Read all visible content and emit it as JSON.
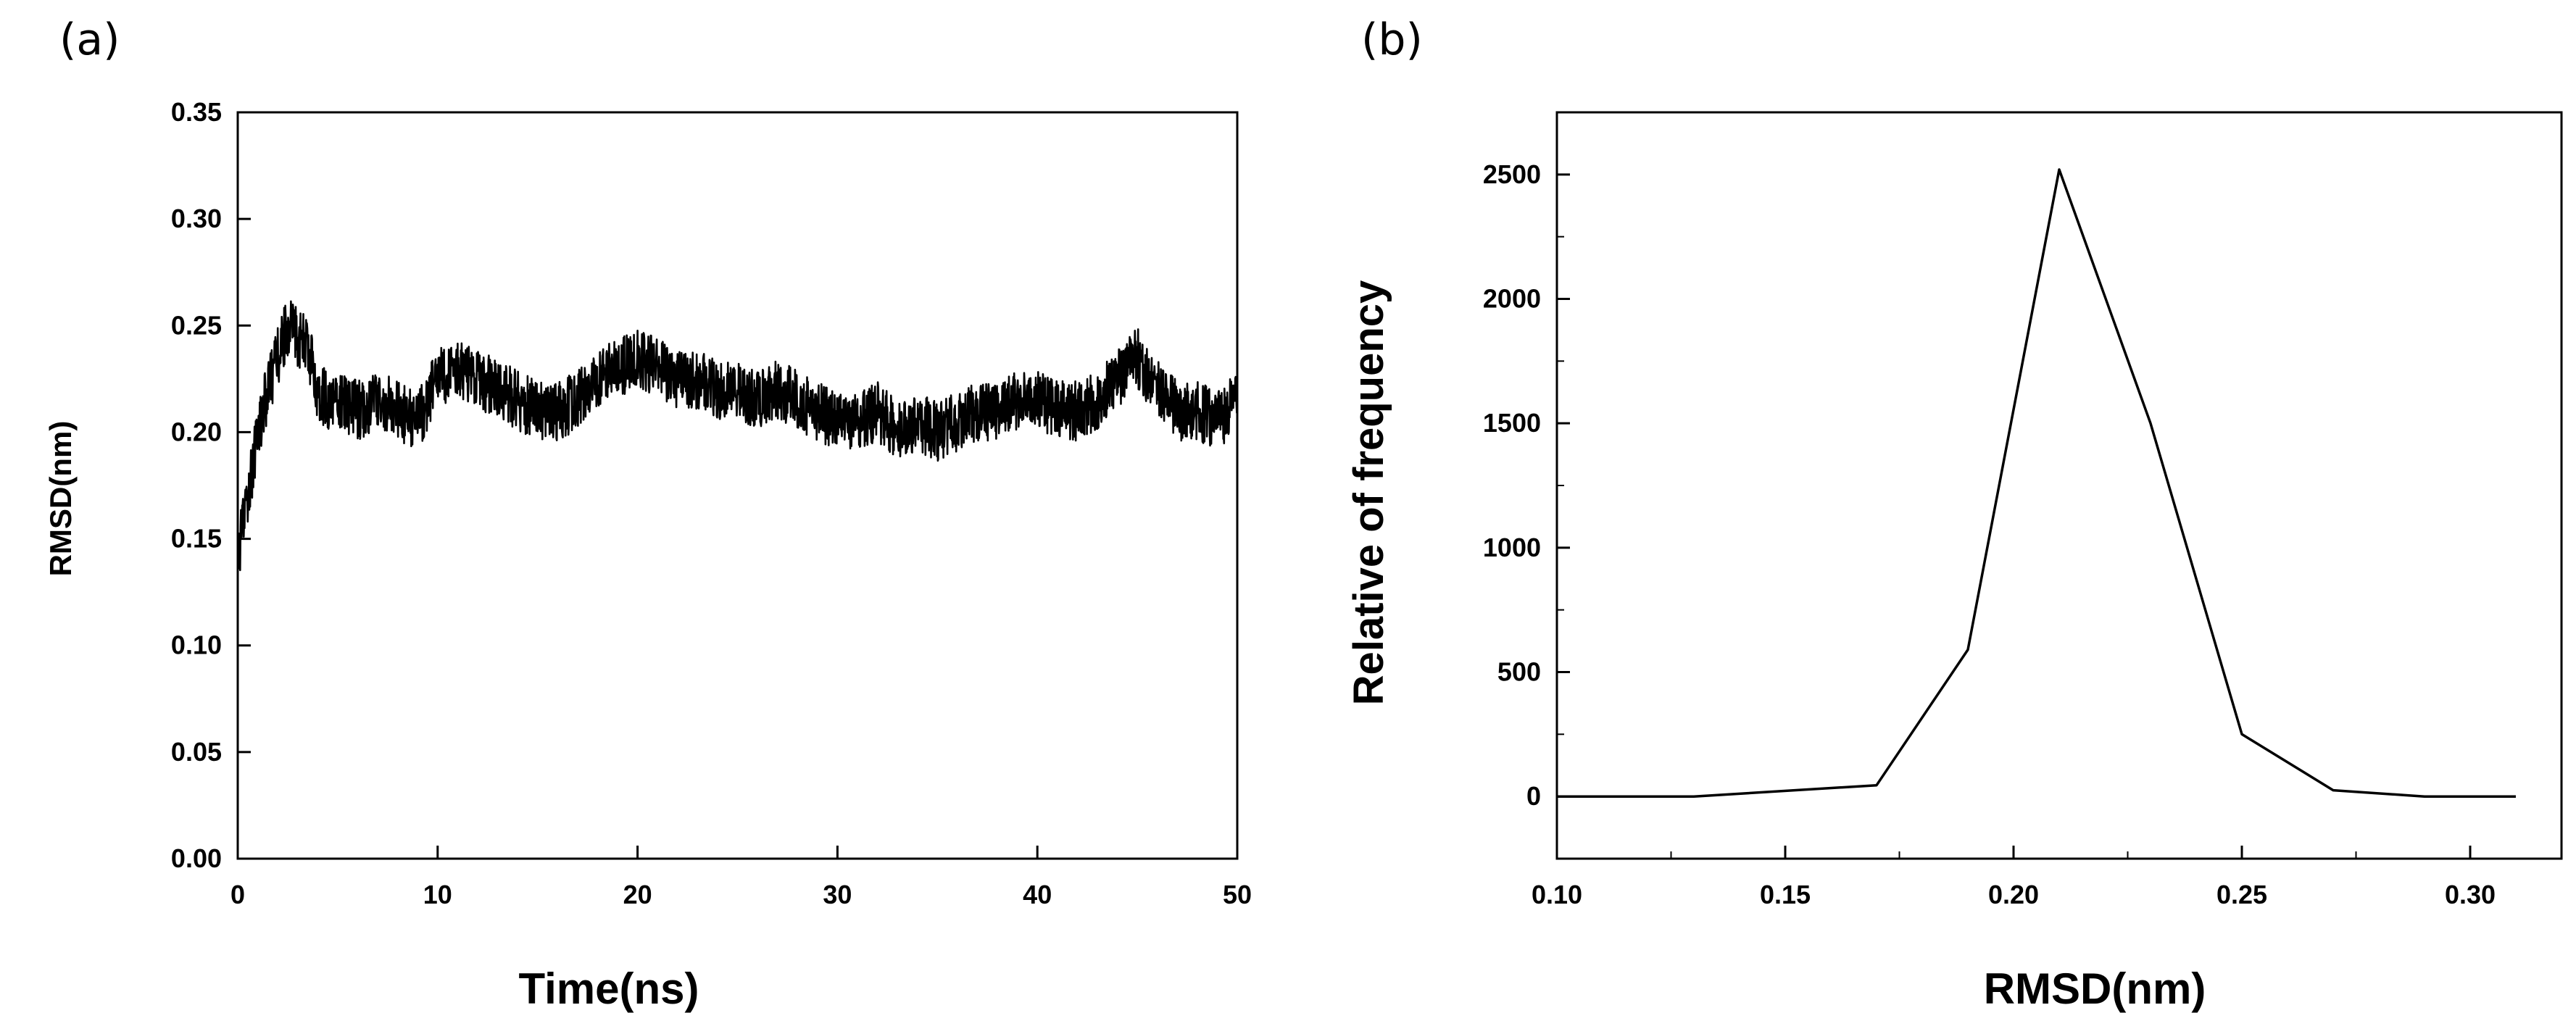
{
  "chart_data": [
    {
      "panel_label": "(a)",
      "type": "line",
      "title": "",
      "xlabel": "Time(ns)",
      "ylabel": "RMSD(nm)",
      "xlim": [
        0,
        50
      ],
      "ylim": [
        0,
        0.35
      ],
      "xticks": [
        0,
        10,
        20,
        30,
        40,
        50
      ],
      "yticks": [
        0.0,
        0.05,
        0.1,
        0.15,
        0.2,
        0.25,
        0.3,
        0.35
      ],
      "xtick_labels": [
        "0",
        "10",
        "20",
        "30",
        "40",
        "50"
      ],
      "ytick_labels": [
        "0.00",
        "0.05",
        "0.10",
        "0.15",
        "0.20",
        "0.25",
        "0.30",
        "0.35"
      ],
      "grid": false,
      "color": "#000000",
      "series": [
        {
          "x": [
            0,
            0.5,
            1,
            1.5,
            2,
            2.5,
            3,
            3.5,
            4,
            4.5,
            5,
            6,
            7,
            8,
            9,
            10,
            11,
            12,
            13,
            14,
            15,
            16,
            17,
            18,
            19,
            20,
            21,
            22,
            23,
            24,
            25,
            26,
            27,
            28,
            29,
            30,
            31,
            32,
            33,
            34,
            35,
            36,
            37,
            38,
            39,
            40,
            41,
            42,
            43,
            44,
            45,
            46,
            47,
            48,
            49,
            50
          ],
          "values": [
            0.14,
            0.17,
            0.2,
            0.22,
            0.235,
            0.25,
            0.245,
            0.24,
            0.22,
            0.215,
            0.215,
            0.21,
            0.215,
            0.21,
            0.205,
            0.225,
            0.23,
            0.225,
            0.22,
            0.215,
            0.21,
            0.21,
            0.215,
            0.225,
            0.23,
            0.235,
            0.23,
            0.225,
            0.225,
            0.22,
            0.22,
            0.215,
            0.22,
            0.215,
            0.21,
            0.205,
            0.205,
            0.21,
            0.2,
            0.205,
            0.2,
            0.205,
            0.21,
            0.21,
            0.215,
            0.215,
            0.21,
            0.21,
            0.215,
            0.225,
            0.235,
            0.22,
            0.21,
            0.21,
            0.205,
            0.215
          ]
        }
      ]
    },
    {
      "panel_label": "(b)",
      "type": "line",
      "title": "",
      "xlabel": "RMSD(nm)",
      "ylabel": "Relative of frequency",
      "xlim": [
        0.1,
        0.32
      ],
      "ylim": [
        -250,
        2750
      ],
      "xticks": [
        0.1,
        0.15,
        0.2,
        0.25,
        0.3
      ],
      "yticks": [
        0,
        500,
        1000,
        1500,
        2000,
        2500
      ],
      "xtick_labels": [
        "0.10",
        "0.15",
        "0.20",
        "0.25",
        "0.30"
      ],
      "ytick_labels": [
        "0",
        "500",
        "1000",
        "1500",
        "2000",
        "2500"
      ],
      "grid": false,
      "color": "#000000",
      "series": [
        {
          "x": [
            0.1,
            0.13,
            0.17,
            0.19,
            0.21,
            0.23,
            0.25,
            0.27,
            0.29,
            0.31
          ],
          "values": [
            0,
            0,
            45,
            590,
            2520,
            1500,
            250,
            25,
            0,
            0
          ]
        }
      ]
    }
  ]
}
